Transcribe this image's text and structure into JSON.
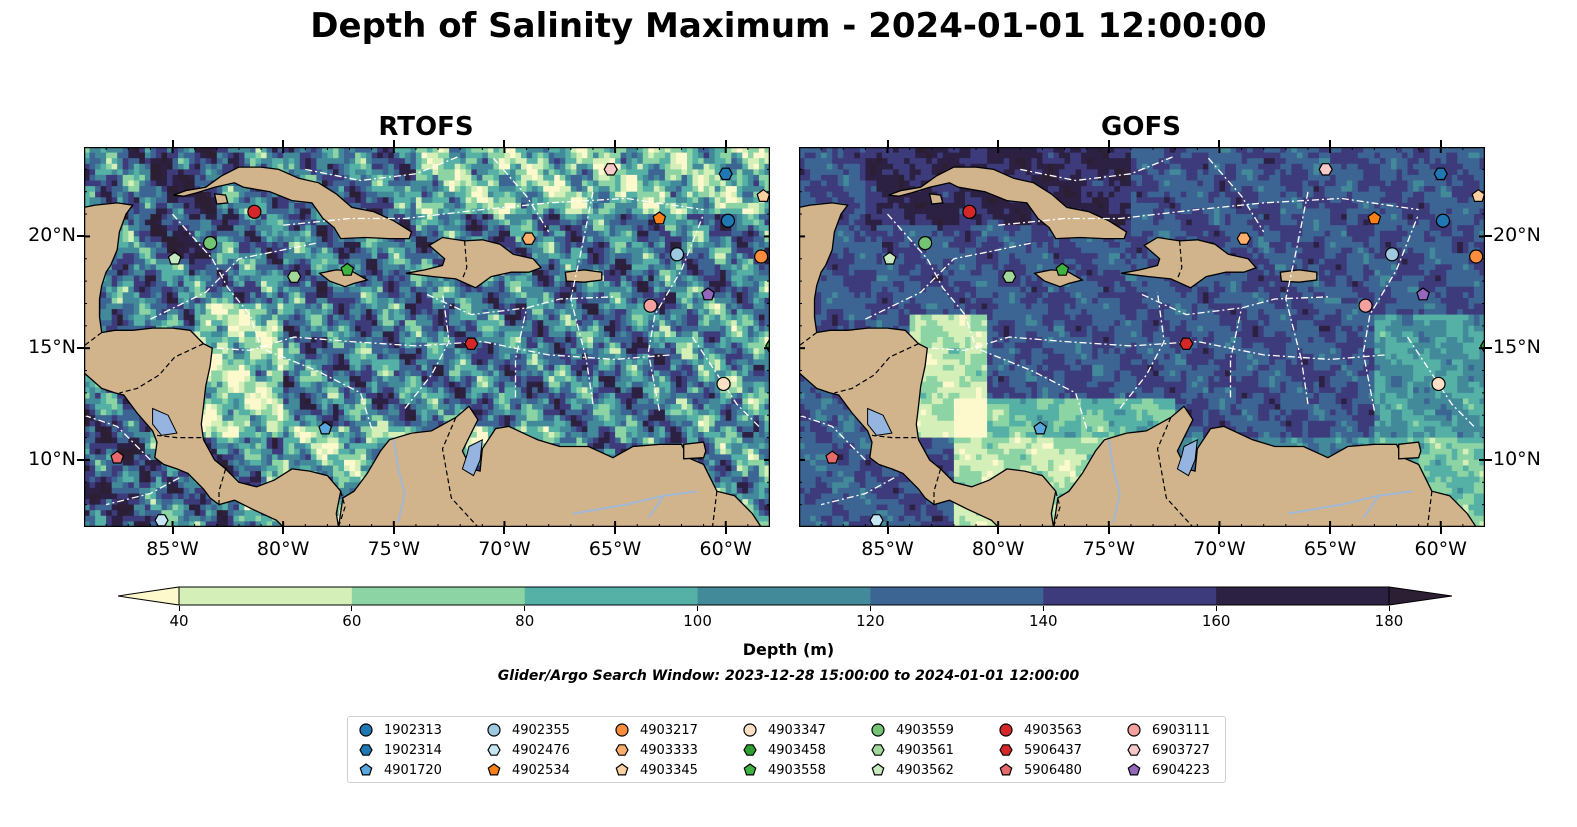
{
  "title": "Depth of Salinity Maximum - 2024-01-01 12:00:00",
  "panels": [
    {
      "title": "RTOFS",
      "variant": "rtofs"
    },
    {
      "title": "GOFS",
      "variant": "gofs"
    }
  ],
  "map_extent": {
    "lon": [
      -89,
      -58
    ],
    "lat": [
      7,
      24
    ]
  },
  "lat_ticks": [
    {
      "value": 10,
      "label": "10°N"
    },
    {
      "value": 15,
      "label": "15°N"
    },
    {
      "value": 20,
      "label": "20°N"
    }
  ],
  "lon_ticks": [
    {
      "value": -85,
      "label": "85°W"
    },
    {
      "value": -80,
      "label": "80°W"
    },
    {
      "value": -75,
      "label": "75°W"
    },
    {
      "value": -70,
      "label": "70°W"
    },
    {
      "value": -65,
      "label": "65°W"
    },
    {
      "value": -60,
      "label": "60°W"
    }
  ],
  "colorbar": {
    "levels": [
      40,
      60,
      80,
      100,
      120,
      140,
      160,
      180
    ],
    "labels": [
      "40",
      "60",
      "80",
      "100",
      "120",
      "140",
      "160",
      "180"
    ],
    "colors": [
      "#d4efb8",
      "#8dd4a4",
      "#55b0a5",
      "#428a9a",
      "#3d6593",
      "#3d3b7b",
      "#2c2142"
    ],
    "under_color": "#fdf9cd",
    "over_color": "#2c1e33",
    "label": "Depth (m)"
  },
  "colors": {
    "land": "#d2b48c",
    "lake": "#95b5e0",
    "river": "#a0b8d6"
  },
  "search_window": "Glider/Argo Search Window: 2023-12-28 15:00:00 to 2024-01-01 12:00:00",
  "floats": [
    {
      "id": "1902313",
      "color": "#1f77b4",
      "marker": "circle",
      "lon": -59.9,
      "lat": 20.7
    },
    {
      "id": "1902314",
      "color": "#1f77b4",
      "marker": "hexagon",
      "lon": -60.0,
      "lat": 22.8
    },
    {
      "id": "4901720",
      "color": "#5aa7df",
      "marker": "pentagon",
      "lon": -78.1,
      "lat": 11.4
    },
    {
      "id": "4902355",
      "color": "#9ecae1",
      "marker": "circle",
      "lon": -62.2,
      "lat": 19.2
    },
    {
      "id": "4902476",
      "color": "#c6e5f5",
      "marker": "hexagon",
      "lon": -85.5,
      "lat": 7.3
    },
    {
      "id": "4902534",
      "color": "#f97f16",
      "marker": "pentagon",
      "lon": -63.0,
      "lat": 20.8
    },
    {
      "id": "4903217",
      "color": "#fd8d3c",
      "marker": "circle",
      "lon": -58.4,
      "lat": 19.1
    },
    {
      "id": "4903333",
      "color": "#fdae6b",
      "marker": "hexagon",
      "lon": -68.9,
      "lat": 19.9
    },
    {
      "id": "4903345",
      "color": "#fdd0a2",
      "marker": "pentagon",
      "lon": -58.3,
      "lat": 21.8
    },
    {
      "id": "4903347",
      "color": "#fde0c5",
      "marker": "circle",
      "lon": -60.1,
      "lat": 13.4
    },
    {
      "id": "4903458",
      "color": "#2ca02c",
      "marker": "hexagon",
      "lon": -57.9,
      "lat": 15.1
    },
    {
      "id": "4903558",
      "color": "#3fb33f",
      "marker": "pentagon",
      "lon": -77.1,
      "lat": 18.5
    },
    {
      "id": "4903559",
      "color": "#74c476",
      "marker": "circle",
      "lon": -83.3,
      "lat": 19.7
    },
    {
      "id": "4903561",
      "color": "#a1d99b",
      "marker": "hexagon",
      "lon": -79.5,
      "lat": 18.2
    },
    {
      "id": "4903562",
      "color": "#c7e9c0",
      "marker": "pentagon",
      "lon": -84.9,
      "lat": 19.0
    },
    {
      "id": "4903563",
      "color": "#d62728",
      "marker": "circle",
      "lon": -81.3,
      "lat": 21.1
    },
    {
      "id": "5906437",
      "color": "#d62728",
      "marker": "hexagon",
      "lon": -71.5,
      "lat": 15.2
    },
    {
      "id": "5906480",
      "color": "#e8696b",
      "marker": "pentagon",
      "lon": -87.5,
      "lat": 10.1
    },
    {
      "id": "6903111",
      "color": "#f4a0a0",
      "marker": "circle",
      "lon": -63.4,
      "lat": 16.9
    },
    {
      "id": "6903727",
      "color": "#f8c8c8",
      "marker": "hexagon",
      "lon": -65.2,
      "lat": 23.0
    },
    {
      "id": "6904223",
      "color": "#9467bd",
      "marker": "pentagon",
      "lon": -60.8,
      "lat": 17.4
    }
  ]
}
